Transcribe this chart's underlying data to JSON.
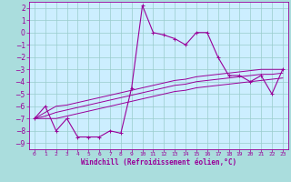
{
  "xlabel": "Windchill (Refroidissement éolien,°C)",
  "x_hours": [
    0,
    1,
    2,
    3,
    4,
    5,
    6,
    7,
    8,
    9,
    10,
    11,
    12,
    13,
    14,
    15,
    16,
    17,
    18,
    19,
    20,
    21,
    22,
    23
  ],
  "y_main": [
    -7,
    -6,
    -8,
    -7,
    -8.5,
    -8.5,
    -8.5,
    -8,
    -8.2,
    -4.5,
    2.2,
    0,
    -0.2,
    -0.5,
    -1,
    0,
    0,
    -2,
    -3.5,
    -3.5,
    -4,
    -3.5,
    -5,
    -3
  ],
  "y_line1": [
    -7,
    -6.5,
    -6,
    -5.9,
    -5.7,
    -5.5,
    -5.3,
    -5.1,
    -4.9,
    -4.7,
    -4.5,
    -4.3,
    -4.1,
    -3.9,
    -3.8,
    -3.6,
    -3.5,
    -3.4,
    -3.3,
    -3.2,
    -3.1,
    -3.0,
    -3.0,
    -3.0
  ],
  "y_line2": [
    -7,
    -6.8,
    -6.5,
    -6.3,
    -6.1,
    -5.9,
    -5.7,
    -5.5,
    -5.3,
    -5.1,
    -4.9,
    -4.7,
    -4.5,
    -4.3,
    -4.2,
    -4.0,
    -3.9,
    -3.8,
    -3.7,
    -3.6,
    -3.5,
    -3.4,
    -3.4,
    -3.3
  ],
  "y_line3": [
    -7,
    -7.0,
    -7.0,
    -6.8,
    -6.6,
    -6.4,
    -6.2,
    -6.0,
    -5.8,
    -5.6,
    -5.4,
    -5.2,
    -5.0,
    -4.8,
    -4.7,
    -4.5,
    -4.4,
    -4.3,
    -4.2,
    -4.1,
    -4.0,
    -3.9,
    -3.8,
    -3.7
  ],
  "line_color": "#990099",
  "bg_color": "#aadddd",
  "plot_bg_color": "#cceeff",
  "grid_color": "#99cccc",
  "ylim": [
    -9.5,
    2.5
  ],
  "xlim": [
    -0.5,
    23.5
  ],
  "yticks": [
    2,
    1,
    0,
    -1,
    -2,
    -3,
    -4,
    -5,
    -6,
    -7,
    -8,
    -9
  ],
  "xticks": [
    0,
    1,
    2,
    3,
    4,
    5,
    6,
    7,
    8,
    9,
    10,
    11,
    12,
    13,
    14,
    15,
    16,
    17,
    18,
    19,
    20,
    21,
    22,
    23
  ]
}
